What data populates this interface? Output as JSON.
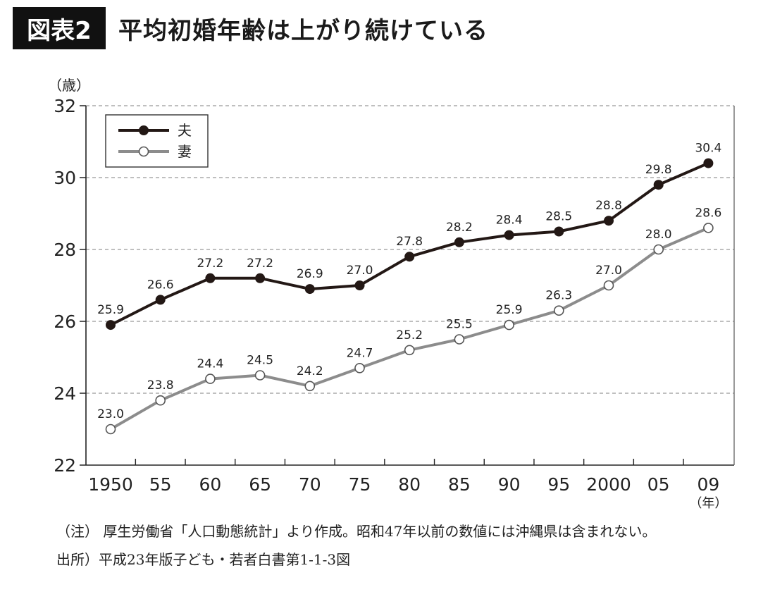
{
  "header": {
    "badge": "図表2",
    "title": "平均初婚年齢は上がり続けている"
  },
  "notes": {
    "note": "（注） 厚生労働省「人口動態統計」より作成。昭和47年以前の数値には沖縄県は含まれない。",
    "source": "出所）平成23年版子ども・若者白書第1-1-3図"
  },
  "colors": {
    "husband": "#231815",
    "wife": "#8c8c8c",
    "grid": "#999999"
  },
  "chart_data": {
    "type": "line",
    "title": "平均初婚年齢は上がり続けている",
    "ylabel": "（歳）",
    "xlabel": "（年）",
    "ylim": [
      22,
      32
    ],
    "yticks": [
      22,
      24,
      26,
      28,
      30,
      32
    ],
    "grid": "horizontal-dashed",
    "legend_position": "top-left",
    "categories": [
      "1950",
      "55",
      "60",
      "65",
      "70",
      "75",
      "80",
      "85",
      "90",
      "95",
      "2000",
      "05",
      "09"
    ],
    "series": [
      {
        "name": "夫",
        "marker": "filled-circle",
        "values": [
          25.9,
          26.6,
          27.2,
          27.2,
          26.9,
          27.0,
          27.8,
          28.2,
          28.4,
          28.5,
          28.8,
          29.8,
          30.4
        ],
        "labels": [
          "25.9",
          "26.6",
          "27.2",
          "27.2",
          "26.9",
          "27.0",
          "27.8",
          "28.2",
          "28.4",
          "28.5",
          "28.8",
          "29.8",
          "30.4"
        ]
      },
      {
        "name": "妻",
        "marker": "open-circle",
        "values": [
          23.0,
          23.8,
          24.4,
          24.5,
          24.2,
          24.7,
          25.2,
          25.5,
          25.9,
          26.3,
          27.0,
          28.0,
          28.6
        ],
        "labels": [
          "23.0",
          "23.8",
          "24.4",
          "24.5",
          "24.2",
          "24.7",
          "25.2",
          "25.5",
          "25.9",
          "26.3",
          "27.0",
          "28.0",
          "28.6"
        ]
      }
    ]
  }
}
